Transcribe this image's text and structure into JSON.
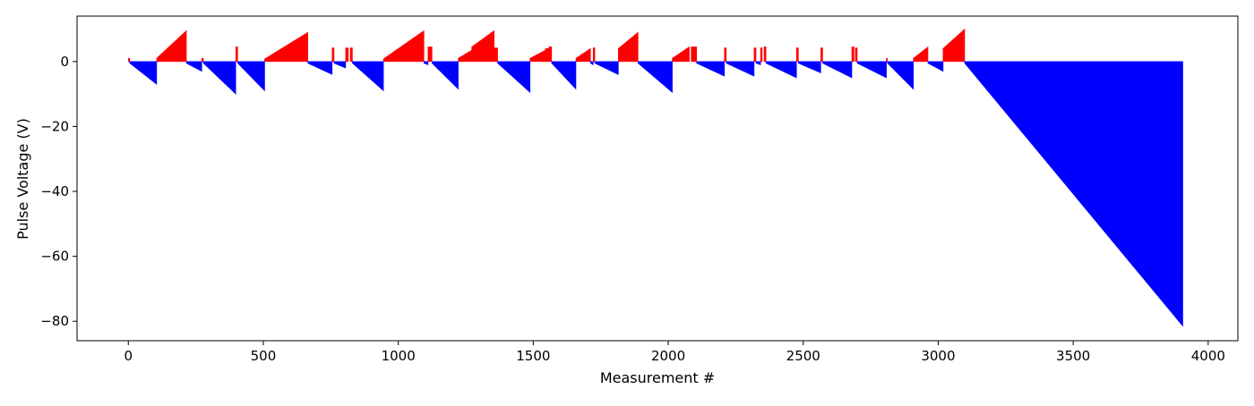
{
  "chart_data": {
    "type": "bar",
    "title": "",
    "xlabel": "Measurement #",
    "ylabel": "Pulse Voltage (V)",
    "xlim": [
      -190,
      4110
    ],
    "ylim": [
      -86,
      14
    ],
    "x_ticks": [
      0,
      500,
      1000,
      1500,
      2000,
      2500,
      3000,
      3500,
      4000
    ],
    "x_tick_labels": [
      "0",
      "500",
      "1000",
      "1500",
      "2000",
      "2500",
      "3000",
      "3500",
      "4000"
    ],
    "y_ticks": [
      -80,
      -60,
      -40,
      -20,
      0
    ],
    "y_tick_labels": [
      "−80",
      "−60",
      "−40",
      "−20",
      "0"
    ],
    "grid": false,
    "legend": "none",
    "colors": {
      "positive": "#ff0000",
      "negative": "#0000ff"
    },
    "series": [
      {
        "color": "#ff0000",
        "polarity": "positive",
        "segments": [
          {
            "x_start": 0,
            "x_end": 5,
            "v_start": 1.0,
            "v_end": 1.0
          },
          {
            "x_start": 105,
            "x_end": 215,
            "v_start": 1.0,
            "v_end": 9.5
          },
          {
            "x_start": 272,
            "x_end": 278,
            "v_start": 1.0,
            "v_end": 1.0
          },
          {
            "x_start": 398,
            "x_end": 405,
            "v_start": 4.5,
            "v_end": 4.5
          },
          {
            "x_start": 505,
            "x_end": 665,
            "v_start": 0.8,
            "v_end": 9.0
          },
          {
            "x_start": 755,
            "x_end": 762,
            "v_start": 4.2,
            "v_end": 4.2
          },
          {
            "x_start": 805,
            "x_end": 815,
            "v_start": 4.2,
            "v_end": 4.2
          },
          {
            "x_start": 822,
            "x_end": 830,
            "v_start": 4.2,
            "v_end": 4.2
          },
          {
            "x_start": 945,
            "x_end": 1095,
            "v_start": 0.8,
            "v_end": 9.5
          },
          {
            "x_start": 1110,
            "x_end": 1125,
            "v_start": 4.5,
            "v_end": 4.5
          },
          {
            "x_start": 1222,
            "x_end": 1272,
            "v_start": 1.0,
            "v_end": 3.5
          },
          {
            "x_start": 1272,
            "x_end": 1355,
            "v_start": 4.5,
            "v_end": 9.5
          },
          {
            "x_start": 1355,
            "x_end": 1368,
            "v_start": 4.2,
            "v_end": 4.2
          },
          {
            "x_start": 1488,
            "x_end": 1545,
            "v_start": 1.0,
            "v_end": 3.5
          },
          {
            "x_start": 1545,
            "x_end": 1558,
            "v_start": 4.0,
            "v_end": 4.0
          },
          {
            "x_start": 1558,
            "x_end": 1568,
            "v_start": 4.5,
            "v_end": 4.5
          },
          {
            "x_start": 1658,
            "x_end": 1712,
            "v_start": 1.0,
            "v_end": 4.0
          },
          {
            "x_start": 1722,
            "x_end": 1728,
            "v_start": 4.2,
            "v_end": 4.2
          },
          {
            "x_start": 1815,
            "x_end": 1888,
            "v_start": 4.0,
            "v_end": 9.0
          },
          {
            "x_start": 2015,
            "x_end": 2078,
            "v_start": 1.0,
            "v_end": 4.5
          },
          {
            "x_start": 2085,
            "x_end": 2105,
            "v_start": 4.5,
            "v_end": 4.5
          },
          {
            "x_start": 2208,
            "x_end": 2215,
            "v_start": 4.2,
            "v_end": 4.2
          },
          {
            "x_start": 2318,
            "x_end": 2325,
            "v_start": 4.2,
            "v_end": 4.2
          },
          {
            "x_start": 2342,
            "x_end": 2348,
            "v_start": 4.2,
            "v_end": 4.2
          },
          {
            "x_start": 2355,
            "x_end": 2362,
            "v_start": 4.5,
            "v_end": 4.5
          },
          {
            "x_start": 2475,
            "x_end": 2482,
            "v_start": 4.2,
            "v_end": 4.2
          },
          {
            "x_start": 2565,
            "x_end": 2572,
            "v_start": 4.2,
            "v_end": 4.2
          },
          {
            "x_start": 2680,
            "x_end": 2688,
            "v_start": 4.5,
            "v_end": 4.5
          },
          {
            "x_start": 2693,
            "x_end": 2700,
            "v_start": 4.2,
            "v_end": 4.2
          },
          {
            "x_start": 2808,
            "x_end": 2812,
            "v_start": 1.0,
            "v_end": 1.0
          },
          {
            "x_start": 2908,
            "x_end": 2962,
            "v_start": 1.0,
            "v_end": 4.5
          },
          {
            "x_start": 3018,
            "x_end": 3098,
            "v_start": 4.0,
            "v_end": 10.0
          }
        ]
      },
      {
        "color": "#0000ff",
        "polarity": "negative",
        "segments": [
          {
            "x_start": 5,
            "x_end": 105,
            "v_start": -0.5,
            "v_end": -7.0
          },
          {
            "x_start": 215,
            "x_end": 272,
            "v_start": -0.5,
            "v_end": -3.0
          },
          {
            "x_start": 278,
            "x_end": 398,
            "v_start": -0.5,
            "v_end": -10.0
          },
          {
            "x_start": 405,
            "x_end": 505,
            "v_start": -0.5,
            "v_end": -9.0
          },
          {
            "x_start": 665,
            "x_end": 755,
            "v_start": -0.5,
            "v_end": -4.0
          },
          {
            "x_start": 762,
            "x_end": 805,
            "v_start": -0.5,
            "v_end": -2.0
          },
          {
            "x_start": 830,
            "x_end": 945,
            "v_start": -0.5,
            "v_end": -9.0
          },
          {
            "x_start": 1095,
            "x_end": 1110,
            "v_start": -0.5,
            "v_end": -1.0
          },
          {
            "x_start": 1125,
            "x_end": 1222,
            "v_start": -0.5,
            "v_end": -8.5
          },
          {
            "x_start": 1368,
            "x_end": 1488,
            "v_start": -0.5,
            "v_end": -9.5
          },
          {
            "x_start": 1568,
            "x_end": 1658,
            "v_start": -0.5,
            "v_end": -8.5
          },
          {
            "x_start": 1712,
            "x_end": 1722,
            "v_start": -0.5,
            "v_end": -1.0
          },
          {
            "x_start": 1728,
            "x_end": 1815,
            "v_start": -0.5,
            "v_end": -4.0
          },
          {
            "x_start": 1888,
            "x_end": 2015,
            "v_start": -0.5,
            "v_end": -9.5
          },
          {
            "x_start": 2105,
            "x_end": 2208,
            "v_start": -0.5,
            "v_end": -4.5
          },
          {
            "x_start": 2215,
            "x_end": 2318,
            "v_start": -0.5,
            "v_end": -4.5
          },
          {
            "x_start": 2325,
            "x_end": 2342,
            "v_start": -0.5,
            "v_end": -1.0
          },
          {
            "x_start": 2362,
            "x_end": 2475,
            "v_start": -0.5,
            "v_end": -5.0
          },
          {
            "x_start": 2482,
            "x_end": 2565,
            "v_start": -0.5,
            "v_end": -3.5
          },
          {
            "x_start": 2572,
            "x_end": 2680,
            "v_start": -0.5,
            "v_end": -5.0
          },
          {
            "x_start": 2700,
            "x_end": 2808,
            "v_start": -0.5,
            "v_end": -5.0
          },
          {
            "x_start": 2812,
            "x_end": 2908,
            "v_start": -0.5,
            "v_end": -8.5
          },
          {
            "x_start": 2962,
            "x_end": 3018,
            "v_start": -0.5,
            "v_end": -3.0
          },
          {
            "x_start": 3098,
            "x_end": 3906,
            "v_start": -0.5,
            "v_end": -81.5
          }
        ]
      }
    ]
  }
}
